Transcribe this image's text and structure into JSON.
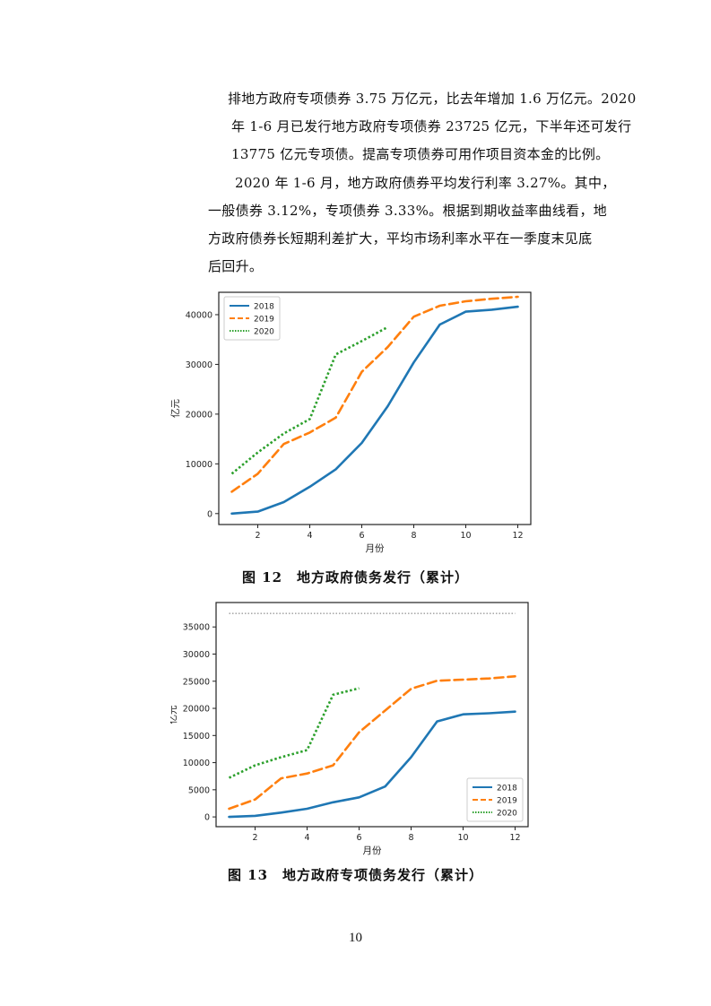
{
  "paragraphs": [
    [
      "排地方政府专项债券 3.75 万亿元，比去年增加 1.6 万亿元。2020",
      "年 1-6 月已发行地方政府专项债券 23725 亿元，下半年还可发行",
      "13775 亿元专项债。提高专项债券可用作项目资本金的比例。"
    ],
    [
      "2020 年 1-6 月，地方政府债券平均发行利率 3.27%。其中，",
      "一般债券 3.12%，专项债券 3.33%。根据到期收益率曲线看，地",
      "方政府债券长短期利差扩大，平均市场利率水平在一季度末见底",
      "后回升。"
    ]
  ],
  "captions": {
    "fig12": "图 12　地方政府债务发行（累计）",
    "fig13": "图 13　地方政府专项债务发行（累计）"
  },
  "page_number": "10",
  "chart_data": [
    {
      "type": "line",
      "title": "",
      "xlabel": "月份",
      "ylabel": "亿元",
      "xlim": [
        0.5,
        12.5
      ],
      "ylim": [
        -2200,
        44500
      ],
      "xticks": [
        2,
        4,
        6,
        8,
        10,
        12
      ],
      "yticks": [
        0,
        10000,
        20000,
        30000,
        40000
      ],
      "legend": "top-left",
      "series": [
        {
          "name": "2018",
          "color": "#1f77b4",
          "style": "solid",
          "x": [
            1,
            2,
            3,
            4,
            5,
            6,
            7,
            8,
            9,
            10,
            11,
            12
          ],
          "values": [
            0,
            400,
            2300,
            5400,
            8900,
            14200,
            21600,
            30400,
            38000,
            40600,
            41000,
            41600
          ]
        },
        {
          "name": "2019",
          "color": "#ff7f0e",
          "style": "dashed",
          "x": [
            1,
            2,
            3,
            4,
            5,
            6,
            7,
            8,
            9,
            10,
            11,
            12
          ],
          "values": [
            4400,
            8000,
            14000,
            16300,
            19300,
            28500,
            33500,
            39600,
            41800,
            42700,
            43200,
            43600
          ]
        },
        {
          "name": "2020",
          "color": "#2ca02c",
          "style": "dotted",
          "x": [
            1,
            2,
            3,
            4,
            5,
            6,
            7
          ],
          "values": [
            8000,
            12300,
            16100,
            19000,
            32000,
            34700,
            37500
          ]
        }
      ]
    },
    {
      "type": "line",
      "title": "",
      "xlabel": "月份",
      "ylabel": "亿元",
      "xlim": [
        0.5,
        12.5
      ],
      "ylim": [
        -1800,
        39500
      ],
      "xticks": [
        2,
        4,
        6,
        8,
        10,
        12
      ],
      "yticks": [
        0,
        5000,
        10000,
        15000,
        20000,
        25000,
        30000,
        35000
      ],
      "legend": "bottom-right",
      "reference_line": {
        "value": 37500,
        "style": "dotted",
        "color": "#777777"
      },
      "series": [
        {
          "name": "2018",
          "color": "#1f77b4",
          "style": "solid",
          "x": [
            1,
            2,
            3,
            4,
            5,
            6,
            7,
            8,
            9,
            10,
            11,
            12
          ],
          "values": [
            0,
            200,
            800,
            1500,
            2700,
            3600,
            5600,
            11000,
            17600,
            18900,
            19100,
            19400
          ]
        },
        {
          "name": "2019",
          "color": "#ff7f0e",
          "style": "dashed",
          "x": [
            1,
            2,
            3,
            4,
            5,
            6,
            7,
            8,
            9,
            10,
            11,
            12
          ],
          "values": [
            1500,
            3200,
            7100,
            8000,
            9500,
            15600,
            19600,
            23600,
            25100,
            25300,
            25500,
            25900
          ]
        },
        {
          "name": "2020",
          "color": "#2ca02c",
          "style": "dotted",
          "x": [
            1,
            2,
            3,
            4,
            5,
            6
          ],
          "values": [
            7200,
            9500,
            11000,
            12300,
            22500,
            23700
          ]
        }
      ]
    }
  ]
}
